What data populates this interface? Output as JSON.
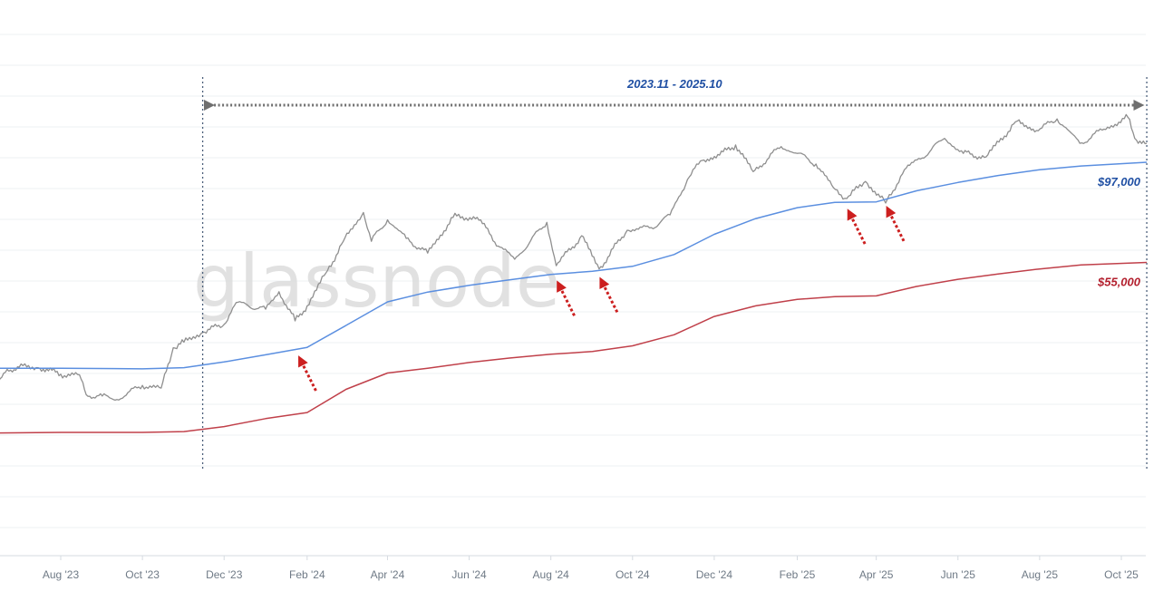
{
  "watermark": "glassnode",
  "colors": {
    "price": "#8f8f8f",
    "blue_line": "#5b8fe0",
    "red_line": "#c0404a",
    "arrow": "#cc1f1f",
    "bracket": "#6f6f6f",
    "grid": "#eef0f3"
  },
  "chart_data": {
    "type": "line",
    "x_ticks": [
      "Aug '23",
      "Oct '23",
      "Dec '23",
      "Feb '24",
      "Apr '24",
      "Jun '24",
      "Aug '24",
      "Oct '24",
      "Dec '24",
      "Feb '25",
      "Apr '25",
      "Jun '25",
      "Aug '25",
      "Oct '25"
    ],
    "x_tick_dates": [
      "2023-08-01",
      "2023-10-01",
      "2023-12-01",
      "2024-02-01",
      "2024-04-01",
      "2024-06-01",
      "2024-08-01",
      "2024-10-01",
      "2024-12-01",
      "2025-02-01",
      "2025-04-01",
      "2025-06-01",
      "2025-08-01",
      "2025-10-01"
    ],
    "y_scale": "log",
    "y_range_usd": [
      20000,
      130000
    ],
    "grid": "horizontal",
    "series": [
      {
        "key": "price",
        "points": [
          [
            "2023-06-01",
            26700
          ],
          [
            "2023-06-10",
            26000
          ],
          [
            "2023-06-22",
            30000
          ],
          [
            "2023-07-01",
            30400
          ],
          [
            "2023-07-15",
            30300
          ],
          [
            "2023-08-01",
            29200
          ],
          [
            "2023-08-15",
            29100
          ],
          [
            "2023-08-20",
            26000
          ],
          [
            "2023-09-01",
            25800
          ],
          [
            "2023-09-12",
            25300
          ],
          [
            "2023-10-01",
            27400
          ],
          [
            "2023-10-15",
            27000
          ],
          [
            "2023-10-24",
            33900
          ],
          [
            "2023-11-01",
            35000
          ],
          [
            "2023-11-15",
            37000
          ],
          [
            "2023-12-01",
            38700
          ],
          [
            "2023-12-10",
            43800
          ],
          [
            "2024-01-01",
            42200
          ],
          [
            "2024-01-11",
            46600
          ],
          [
            "2024-01-23",
            39500
          ],
          [
            "2024-02-01",
            43000
          ],
          [
            "2024-02-15",
            51800
          ],
          [
            "2024-02-28",
            62000
          ],
          [
            "2024-03-14",
            73000
          ],
          [
            "2024-03-20",
            62000
          ],
          [
            "2024-04-01",
            70000
          ],
          [
            "2024-04-15",
            63000
          ],
          [
            "2024-05-01",
            58000
          ],
          [
            "2024-05-20",
            71000
          ],
          [
            "2024-06-07",
            71000
          ],
          [
            "2024-06-24",
            60000
          ],
          [
            "2024-07-05",
            56000
          ],
          [
            "2024-07-29",
            69000
          ],
          [
            "2024-08-05",
            54000
          ],
          [
            "2024-08-24",
            64000
          ],
          [
            "2024-09-06",
            53000
          ],
          [
            "2024-09-27",
            66000
          ],
          [
            "2024-10-15",
            67000
          ],
          [
            "2024-10-29",
            72000
          ],
          [
            "2024-11-11",
            88000
          ],
          [
            "2024-11-22",
            98000
          ],
          [
            "2024-12-05",
            101000
          ],
          [
            "2024-12-17",
            107000
          ],
          [
            "2024-12-30",
            92000
          ],
          [
            "2025-01-20",
            106000
          ],
          [
            "2025-02-01",
            102000
          ],
          [
            "2025-02-15",
            96000
          ],
          [
            "2025-02-28",
            84000
          ],
          [
            "2025-03-10",
            79000
          ],
          [
            "2025-03-24",
            87000
          ],
          [
            "2025-04-08",
            77000
          ],
          [
            "2025-04-22",
            93000
          ],
          [
            "2025-05-12",
            104000
          ],
          [
            "2025-05-22",
            111000
          ],
          [
            "2025-06-05",
            102000
          ],
          [
            "2025-06-22",
            100000
          ],
          [
            "2025-07-14",
            122000
          ],
          [
            "2025-07-31",
            116000
          ],
          [
            "2025-08-14",
            124000
          ],
          [
            "2025-08-31",
            108000
          ],
          [
            "2025-09-18",
            117000
          ],
          [
            "2025-10-06",
            125000
          ],
          [
            "2025-10-11",
            111000
          ],
          [
            "2025-10-20",
            108000
          ]
        ]
      },
      {
        "key": "blue_line",
        "points": [
          [
            "2023-06-01",
            30200
          ],
          [
            "2023-08-01",
            30200
          ],
          [
            "2023-10-01",
            30100
          ],
          [
            "2023-11-01",
            30300
          ],
          [
            "2023-12-01",
            31300
          ],
          [
            "2024-01-01",
            32600
          ],
          [
            "2024-02-01",
            34000
          ],
          [
            "2024-03-01",
            38500
          ],
          [
            "2024-04-01",
            44000
          ],
          [
            "2024-05-01",
            46500
          ],
          [
            "2024-06-01",
            48300
          ],
          [
            "2024-07-01",
            49800
          ],
          [
            "2024-08-01",
            51400
          ],
          [
            "2024-09-01",
            52300
          ],
          [
            "2024-10-01",
            53800
          ],
          [
            "2024-11-01",
            57500
          ],
          [
            "2024-12-01",
            64500
          ],
          [
            "2025-01-01",
            70500
          ],
          [
            "2025-02-01",
            75000
          ],
          [
            "2025-03-01",
            77300
          ],
          [
            "2025-04-01",
            77500
          ],
          [
            "2025-05-01",
            82500
          ],
          [
            "2025-06-01",
            86500
          ],
          [
            "2025-07-01",
            90000
          ],
          [
            "2025-08-01",
            93000
          ],
          [
            "2025-09-01",
            95000
          ],
          [
            "2025-10-20",
            97000
          ]
        ]
      },
      {
        "key": "red_line",
        "points": [
          [
            "2023-06-01",
            20900
          ],
          [
            "2023-08-01",
            21000
          ],
          [
            "2023-10-01",
            21000
          ],
          [
            "2023-11-01",
            21100
          ],
          [
            "2023-12-01",
            21700
          ],
          [
            "2024-01-01",
            22700
          ],
          [
            "2024-02-01",
            23500
          ],
          [
            "2024-03-01",
            26800
          ],
          [
            "2024-04-01",
            29400
          ],
          [
            "2024-05-01",
            30200
          ],
          [
            "2024-06-01",
            31200
          ],
          [
            "2024-07-01",
            32000
          ],
          [
            "2024-08-01",
            32700
          ],
          [
            "2024-09-01",
            33200
          ],
          [
            "2024-10-01",
            34300
          ],
          [
            "2024-11-01",
            36500
          ],
          [
            "2024-12-01",
            40500
          ],
          [
            "2025-01-01",
            43000
          ],
          [
            "2025-02-01",
            44600
          ],
          [
            "2025-03-01",
            45300
          ],
          [
            "2025-04-01",
            45500
          ],
          [
            "2025-05-01",
            48000
          ],
          [
            "2025-06-01",
            50000
          ],
          [
            "2025-07-01",
            51500
          ],
          [
            "2025-08-01",
            53000
          ],
          [
            "2025-09-01",
            54200
          ],
          [
            "2025-10-20",
            55000
          ]
        ]
      }
    ],
    "period": {
      "label": "2023.11 - 2025.10",
      "start": "2023-11-15",
      "end": "2025-10-20"
    },
    "line_labels": [
      {
        "series": "blue_line",
        "text": "$97,000"
      },
      {
        "series": "red_line",
        "text": "$55,000"
      }
    ],
    "support_arrows": [
      "2024-01-25",
      "2024-08-05",
      "2024-09-06",
      "2025-03-10",
      "2025-04-08"
    ]
  }
}
